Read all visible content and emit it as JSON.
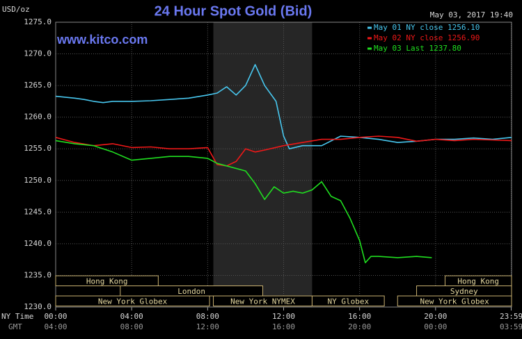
{
  "chart_data": {
    "type": "line",
    "title": "24 Hour Spot Gold (Bid)",
    "unit_label": "USD/oz",
    "website": "www.kitco.com",
    "timestamp": "May 03, 2017 19:40",
    "x_axis_label": "NY Time",
    "x2_axis_label": "GMT",
    "xlim": [
      0,
      24
    ],
    "ylim": [
      1230,
      1275
    ],
    "yticks": [
      {
        "value": 1230,
        "label": "1230.0"
      },
      {
        "value": 1235,
        "label": "1235.0"
      },
      {
        "value": 1240,
        "label": "1240.0"
      },
      {
        "value": 1245,
        "label": "1245.0"
      },
      {
        "value": 1250,
        "label": "1250.0"
      },
      {
        "value": 1255,
        "label": "1255.0"
      },
      {
        "value": 1260,
        "label": "1260.0"
      },
      {
        "value": 1265,
        "label": "1265.0"
      },
      {
        "value": 1270,
        "label": "1270.0"
      },
      {
        "value": 1275,
        "label": "1275.0"
      }
    ],
    "xticks": [
      {
        "value": 0,
        "label": "00:00"
      },
      {
        "value": 4,
        "label": "04:00"
      },
      {
        "value": 8,
        "label": "08:00"
      },
      {
        "value": 12,
        "label": "12:00"
      },
      {
        "value": 16,
        "label": "16:00"
      },
      {
        "value": 20,
        "label": "20:00"
      },
      {
        "value": 23.983,
        "label": "23:59"
      }
    ],
    "x2ticks": [
      "04:00",
      "08:00",
      "12:00",
      "16:00",
      "20:00",
      "00:00",
      "03:59"
    ],
    "grid": true,
    "legend": "top-right",
    "sessions": [
      {
        "label": "Hong Kong",
        "row": 0,
        "start": 0,
        "end": 5.4
      },
      {
        "label": "Hong Kong",
        "row": 0,
        "start": 20.5,
        "end": 24
      },
      {
        "label": "London",
        "row": 1,
        "start": 3.4,
        "end": 10.9
      },
      {
        "label": "Sydney",
        "row": 1,
        "start": 19,
        "end": 24
      },
      {
        "label": "New York Globex",
        "row": 2,
        "start": 0,
        "end": 8.1
      },
      {
        "label": "New York NYMEX",
        "row": 2,
        "start": 8.3,
        "end": 13.5,
        "highlight": true
      },
      {
        "label": "NY Globex",
        "row": 2,
        "start": 13.5,
        "end": 17.3
      },
      {
        "label": "New York Globex",
        "row": 2,
        "start": 18,
        "end": 24
      }
    ],
    "series": [
      {
        "name": "May 01 NY close 1256.10",
        "color": "#48c8f0",
        "x": [
          0,
          1,
          1.5,
          2,
          2.5,
          3,
          4,
          5,
          6,
          7,
          8,
          8.5,
          9,
          9.5,
          10,
          10.5,
          11,
          11.6,
          12,
          12.3,
          13,
          14,
          15,
          16,
          17,
          18,
          19,
          20,
          21,
          22,
          23,
          24
        ],
        "values": [
          1263.3,
          1263,
          1262.8,
          1262.5,
          1262.3,
          1262.5,
          1262.5,
          1262.6,
          1262.8,
          1263,
          1263.5,
          1263.8,
          1264.8,
          1263.5,
          1265,
          1268.3,
          1265,
          1262.5,
          1257,
          1255,
          1255.5,
          1255.5,
          1257,
          1256.8,
          1256.5,
          1256,
          1256.2,
          1256.5,
          1256.5,
          1256.7,
          1256.5,
          1256.8
        ]
      },
      {
        "name": "May 02 NY close 1256.90",
        "color": "#f01818",
        "x": [
          0,
          1,
          2,
          3,
          4,
          5,
          6,
          7,
          8,
          8.5,
          9,
          9.5,
          10,
          10.5,
          11,
          12,
          13,
          14,
          15,
          16,
          17,
          18,
          19,
          20,
          21,
          22,
          23,
          24
        ],
        "values": [
          1256.8,
          1256,
          1255.5,
          1255.8,
          1255.2,
          1255.3,
          1255,
          1255,
          1255.2,
          1252.5,
          1252.3,
          1253,
          1255,
          1254.5,
          1254.8,
          1255.5,
          1256,
          1256.5,
          1256.5,
          1256.8,
          1257,
          1256.8,
          1256.2,
          1256.5,
          1256.3,
          1256.5,
          1256.4,
          1256.3
        ]
      },
      {
        "name": "May 03 Last 1237.80",
        "color": "#20e020",
        "x": [
          0,
          1,
          2,
          3,
          4,
          5,
          6,
          7,
          8,
          8.5,
          9,
          10,
          10.5,
          11,
          11.5,
          12,
          12.5,
          13,
          13.5,
          14,
          14.5,
          15,
          15.5,
          16,
          16.3,
          16.6,
          17,
          18,
          19,
          19.8
        ],
        "values": [
          1256.3,
          1255.8,
          1255.5,
          1254.5,
          1253.2,
          1253.5,
          1253.8,
          1253.8,
          1253.5,
          1252.7,
          1252.3,
          1251.5,
          1249.5,
          1247,
          1249,
          1248,
          1248.3,
          1248,
          1248.5,
          1249.8,
          1247.5,
          1246.8,
          1244,
          1240.5,
          1237,
          1238,
          1238,
          1237.8,
          1238,
          1237.8
        ]
      }
    ]
  }
}
